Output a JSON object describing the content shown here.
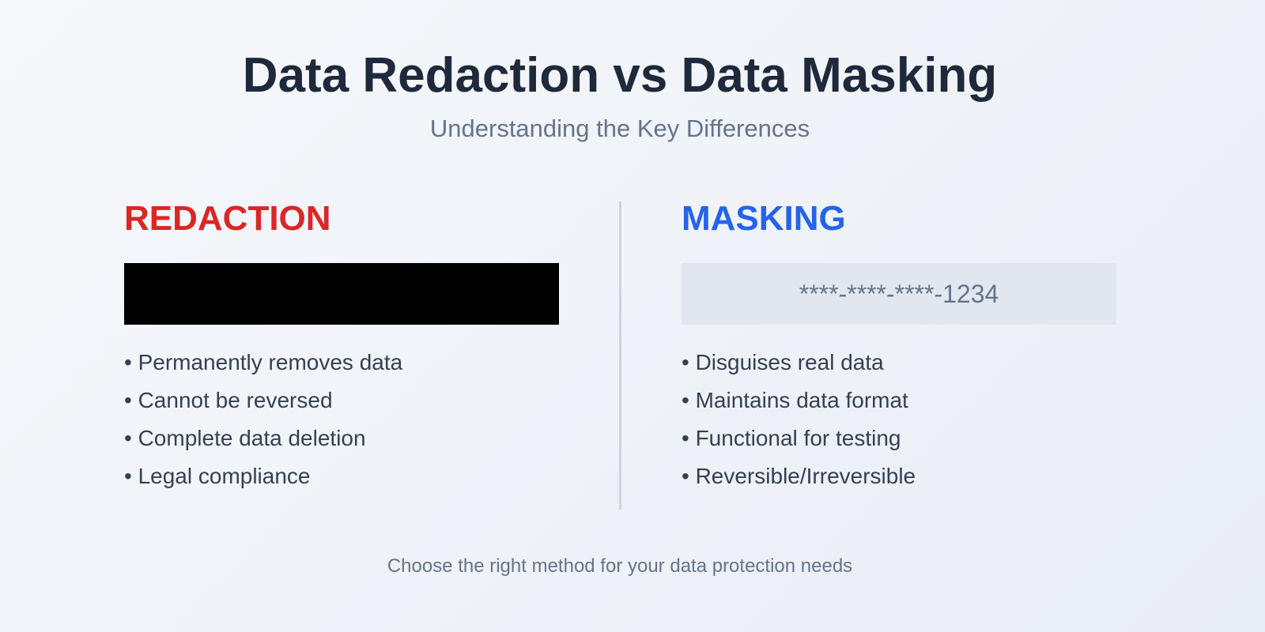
{
  "title": "Data Redaction vs Data Masking",
  "subtitle": "Understanding the Key Differences",
  "redaction": {
    "heading": "REDACTION",
    "color": "#dc2626",
    "bullets": [
      "• Permanently removes data",
      "• Cannot be reversed",
      "• Complete data deletion",
      "• Legal compliance"
    ]
  },
  "masking": {
    "heading": "MASKING",
    "color": "#2563eb",
    "example": "****-****-****-1234",
    "bullets": [
      "• Disguises real data",
      "• Maintains data format",
      "• Functional for testing",
      "• Reversible/Irreversible"
    ]
  },
  "footer": "Choose the right method for your data protection needs"
}
